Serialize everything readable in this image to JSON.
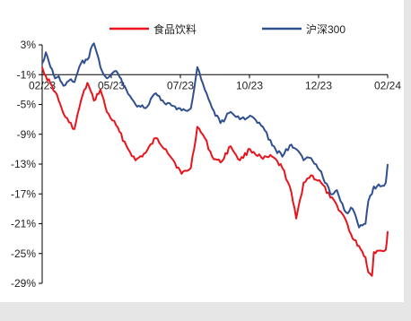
{
  "chart_data": {
    "type": "line",
    "title": "",
    "xlabel": "",
    "ylabel": "",
    "ylim": [
      -29,
      3
    ],
    "y_ticks": [
      "3%",
      "-1%",
      "-5%",
      "-9%",
      "-13%",
      "-17%",
      "-21%",
      "-25%",
      "-29%"
    ],
    "x_ticks": [
      "02/23",
      "05/23",
      "07/23",
      "10/23",
      "12/23",
      "02/24"
    ],
    "xlim": [
      "2023-02-13",
      "2024-02-22"
    ],
    "grid": false,
    "legend_position": "top",
    "colors": {
      "food_beverage": "#e8141c",
      "csi300": "#2f4f8f"
    },
    "series": [
      {
        "name": "食品饮料",
        "points": [
          [
            "2023-02-13",
            0.0
          ],
          [
            "2023-02-17",
            -1.2
          ],
          [
            "2023-02-22",
            -2.2
          ],
          [
            "2023-02-27",
            -3.3
          ],
          [
            "2023-03-03",
            -4.5
          ],
          [
            "2023-03-08",
            -6.2
          ],
          [
            "2023-03-14",
            -7.4
          ],
          [
            "2023-03-20",
            -8.3
          ],
          [
            "2023-03-27",
            -4.5
          ],
          [
            "2023-04-03",
            -2.1
          ],
          [
            "2023-04-10",
            -4.5
          ],
          [
            "2023-04-17",
            -3.0
          ],
          [
            "2023-04-24",
            -6.0
          ],
          [
            "2023-05-04",
            -7.8
          ],
          [
            "2023-05-15",
            -10.5
          ],
          [
            "2023-05-25",
            -12.5
          ],
          [
            "2023-06-05",
            -11.5
          ],
          [
            "2023-06-16",
            -9.5
          ],
          [
            "2023-06-27",
            -11.0
          ],
          [
            "2023-07-05",
            -12.5
          ],
          [
            "2023-07-14",
            -14.3
          ],
          [
            "2023-07-24",
            -13.5
          ],
          [
            "2023-07-31",
            -8.0
          ],
          [
            "2023-08-08",
            -9.5
          ],
          [
            "2023-08-16",
            -12.0
          ],
          [
            "2023-08-25",
            -12.8
          ],
          [
            "2023-09-05",
            -10.6
          ],
          [
            "2023-09-15",
            -12.5
          ],
          [
            "2023-09-26",
            -11.0
          ],
          [
            "2023-10-10",
            -12.3
          ],
          [
            "2023-10-20",
            -12.0
          ],
          [
            "2023-10-31",
            -13.5
          ],
          [
            "2023-11-08",
            -16.0
          ],
          [
            "2023-11-15",
            -20.3
          ],
          [
            "2023-11-23",
            -15.5
          ],
          [
            "2023-12-01",
            -14.5
          ],
          [
            "2023-12-12",
            -15.5
          ],
          [
            "2023-12-22",
            -17.5
          ],
          [
            "2023-12-29",
            -18.5
          ],
          [
            "2024-01-08",
            -20.6
          ],
          [
            "2024-01-15",
            -23.0
          ],
          [
            "2024-01-22",
            -24.0
          ],
          [
            "2024-01-29",
            -25.5
          ],
          [
            "2024-02-01",
            -27.5
          ],
          [
            "2024-02-05",
            -28.0
          ],
          [
            "2024-02-07",
            -24.8
          ],
          [
            "2024-02-14",
            -24.6
          ],
          [
            "2024-02-20",
            -24.5
          ],
          [
            "2024-02-22",
            -22.0
          ]
        ]
      },
      {
        "name": "沪深300",
        "points": [
          [
            "2023-02-13",
            0.5
          ],
          [
            "2023-02-17",
            2.0
          ],
          [
            "2023-02-22",
            0.0
          ],
          [
            "2023-02-27",
            -1.5
          ],
          [
            "2023-03-03",
            -1.2
          ],
          [
            "2023-03-08",
            -2.5
          ],
          [
            "2023-03-14",
            -1.8
          ],
          [
            "2023-03-20",
            -2.0
          ],
          [
            "2023-03-27",
            0.5
          ],
          [
            "2023-04-03",
            1.0
          ],
          [
            "2023-04-10",
            3.2
          ],
          [
            "2023-04-17",
            0.0
          ],
          [
            "2023-04-24",
            -1.5
          ],
          [
            "2023-05-04",
            -0.5
          ],
          [
            "2023-05-15",
            -3.0
          ],
          [
            "2023-05-25",
            -5.0
          ],
          [
            "2023-06-05",
            -5.5
          ],
          [
            "2023-06-16",
            -3.5
          ],
          [
            "2023-06-27",
            -5.0
          ],
          [
            "2023-07-05",
            -5.2
          ],
          [
            "2023-07-14",
            -5.8
          ],
          [
            "2023-07-24",
            -5.5
          ],
          [
            "2023-07-31",
            0.0
          ],
          [
            "2023-08-08",
            -3.0
          ],
          [
            "2023-08-16",
            -5.5
          ],
          [
            "2023-08-25",
            -7.5
          ],
          [
            "2023-09-05",
            -6.0
          ],
          [
            "2023-09-15",
            -7.0
          ],
          [
            "2023-09-26",
            -6.5
          ],
          [
            "2023-10-10",
            -8.0
          ],
          [
            "2023-10-20",
            -10.5
          ],
          [
            "2023-10-31",
            -12.0
          ],
          [
            "2023-11-08",
            -10.5
          ],
          [
            "2023-11-15",
            -11.0
          ],
          [
            "2023-11-23",
            -12.5
          ],
          [
            "2023-12-01",
            -12.2
          ],
          [
            "2023-12-12",
            -14.0
          ],
          [
            "2023-12-22",
            -17.0
          ],
          [
            "2023-12-29",
            -16.5
          ],
          [
            "2024-01-08",
            -19.5
          ],
          [
            "2024-01-15",
            -19.0
          ],
          [
            "2024-01-22",
            -21.5
          ],
          [
            "2024-01-29",
            -21.0
          ],
          [
            "2024-02-01",
            -18.0
          ],
          [
            "2024-02-05",
            -17.0
          ],
          [
            "2024-02-07",
            -16.0
          ],
          [
            "2024-02-14",
            -16.0
          ],
          [
            "2024-02-20",
            -15.5
          ],
          [
            "2024-02-22",
            -13.0
          ]
        ]
      }
    ]
  }
}
